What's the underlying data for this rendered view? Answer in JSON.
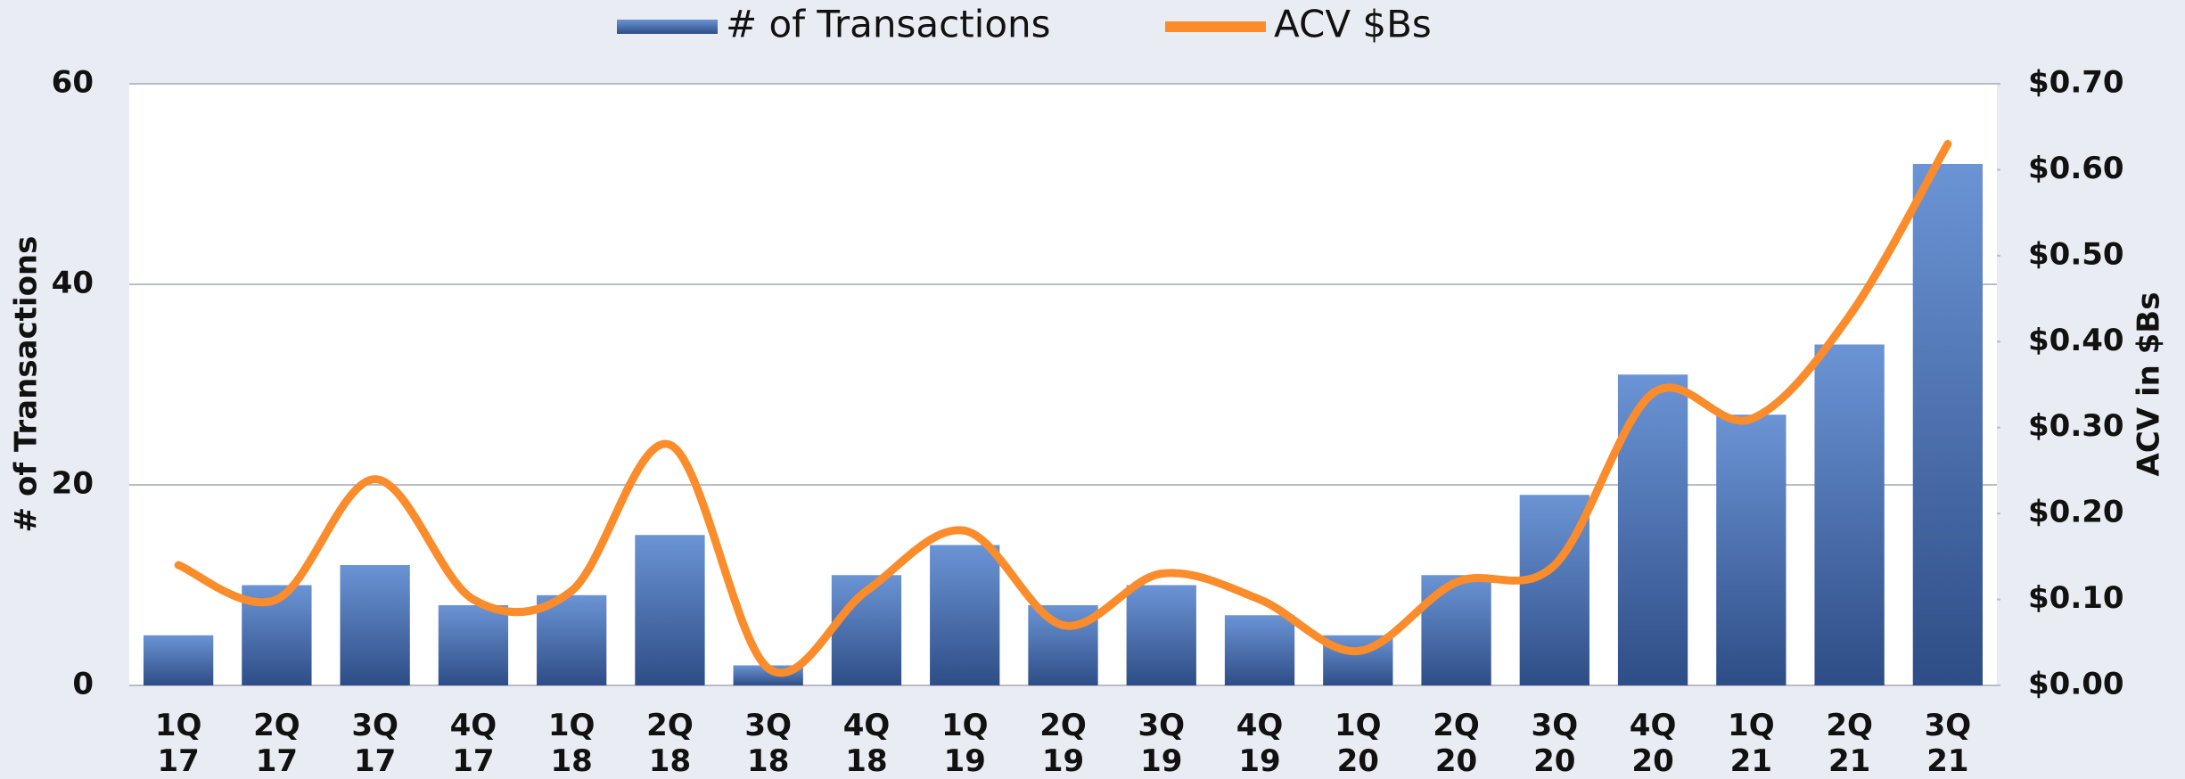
{
  "chart_data": {
    "type": "bar-line",
    "categories": [
      "1Q 17",
      "2Q 17",
      "3Q 17",
      "4Q 17",
      "1Q 18",
      "2Q 18",
      "3Q 18",
      "4Q 18",
      "1Q 19",
      "2Q 19",
      "3Q 19",
      "4Q 19",
      "1Q 20",
      "2Q 20",
      "3Q 20",
      "4Q 20",
      "1Q 21",
      "2Q 21",
      "3Q 21"
    ],
    "series": [
      {
        "name": "# of Transactions",
        "type": "bar",
        "color": "#4a72b8",
        "values": [
          5,
          10,
          12,
          8,
          9,
          15,
          2,
          11,
          14,
          8,
          10,
          7,
          5,
          11,
          19,
          31,
          27,
          34,
          52
        ]
      },
      {
        "name": "ACV $Bs",
        "type": "line",
        "axis": "y2",
        "color": "#fb8c2c",
        "values": [
          0.14,
          0.1,
          0.24,
          0.1,
          0.11,
          0.28,
          0.02,
          0.11,
          0.18,
          0.07,
          0.13,
          0.1,
          0.04,
          0.12,
          0.14,
          0.34,
          0.31,
          0.43,
          0.63
        ]
      }
    ],
    "ylabel": "# of Transactions",
    "y2label": "ACV in $Bs",
    "ylim": [
      0,
      60
    ],
    "yticks": [
      0,
      20,
      40,
      60
    ],
    "y2lim": [
      0,
      0.7
    ],
    "y2ticks": [
      {
        "value": 0,
        "label": "$0.00"
      },
      {
        "value": 0.1,
        "label": "$0.10"
      },
      {
        "value": 0.2,
        "label": "$0.20"
      },
      {
        "value": 0.3,
        "label": "$0.30"
      },
      {
        "value": 0.4,
        "label": "$0.40"
      },
      {
        "value": 0.5,
        "label": "$0.50"
      },
      {
        "value": 0.6,
        "label": "$0.60"
      },
      {
        "value": 0.7,
        "label": "$0.70"
      }
    ],
    "grid": true,
    "legend": "top",
    "smooth": true
  }
}
